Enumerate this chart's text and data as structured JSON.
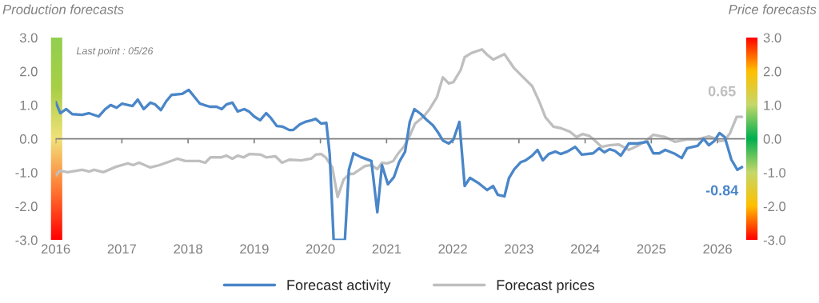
{
  "chart_data": {
    "type": "line",
    "ylabel": "Production forecasts",
    "y2label": "Price forecasts",
    "annotations": [
      "Last point : 05/26"
    ],
    "xlim": [
      2016,
      2026.42
    ],
    "xticks": [
      2016,
      2017,
      2018,
      2019,
      2020,
      2021,
      2022,
      2023,
      2024,
      2025,
      2026
    ],
    "ylim": [
      -3,
      3
    ],
    "yticks": [
      {
        "value": -3,
        "label": "-3.0"
      },
      {
        "value": -2,
        "label": "-2.0"
      },
      {
        "value": -1,
        "label": "-1.0"
      },
      {
        "value": 0,
        "label": "0.0"
      },
      {
        "value": 1,
        "label": "1.0"
      },
      {
        "value": 2,
        "label": "2.0"
      },
      {
        "value": 3,
        "label": "3.0"
      }
    ],
    "y2lim": [
      -3,
      3
    ],
    "y2ticks": [
      {
        "value": -3,
        "label": "-3.0"
      },
      {
        "value": -2,
        "label": "-2.0"
      },
      {
        "value": -1,
        "label": "-1.0"
      },
      {
        "value": 0,
        "label": "0.0"
      },
      {
        "value": 1,
        "label": "1.0"
      },
      {
        "value": 2,
        "label": "2.0"
      },
      {
        "value": 3,
        "label": "3.0"
      }
    ],
    "ref_lines": [
      {
        "axis": "y",
        "value": 0,
        "color": "#808080"
      }
    ],
    "grid": false,
    "legend": "bottom",
    "marker": "none",
    "line_style": "solid",
    "series": [
      {
        "name": "Forecast activity",
        "color": "#4a86c8",
        "axis": "y",
        "x": [
          2016.0,
          2016.07,
          2016.16,
          2016.25,
          2016.4,
          2016.5,
          2016.65,
          2016.75,
          2016.83,
          2016.92,
          2017.0,
          2017.16,
          2017.24,
          2017.33,
          2017.43,
          2017.5,
          2017.59,
          2017.67,
          2017.75,
          2017.91,
          2018.01,
          2018.08,
          2018.18,
          2018.33,
          2018.43,
          2018.51,
          2018.58,
          2018.67,
          2018.75,
          2018.85,
          2018.92,
          2019.0,
          2019.09,
          2019.18,
          2019.25,
          2019.34,
          2019.43,
          2019.53,
          2019.59,
          2019.69,
          2019.77,
          2019.87,
          2019.93,
          2020.01,
          2020.09,
          2020.14,
          2020.2,
          2020.37,
          2020.43,
          2020.5,
          2020.61,
          2020.77,
          2020.86,
          2020.93,
          2021.02,
          2021.11,
          2021.19,
          2021.28,
          2021.35,
          2021.42,
          2021.52,
          2021.6,
          2021.7,
          2021.77,
          2021.85,
          2021.94,
          2022.01,
          2022.1,
          2022.18,
          2022.26,
          2022.4,
          2022.52,
          2022.61,
          2022.68,
          2022.78,
          2022.85,
          2022.93,
          2023.03,
          2023.1,
          2023.2,
          2023.28,
          2023.36,
          2023.45,
          2023.55,
          2023.63,
          2023.73,
          2023.85,
          2023.95,
          2024.12,
          2024.21,
          2024.29,
          2024.37,
          2024.45,
          2024.54,
          2024.66,
          2024.79,
          2024.94,
          2025.03,
          2025.12,
          2025.21,
          2025.36,
          2025.46,
          2025.54,
          2025.7,
          2025.79,
          2025.87,
          2025.95,
          2026.03,
          2026.11,
          2026.21,
          2026.3,
          2026.37
        ],
        "values": [
          1.09,
          0.76,
          0.88,
          0.73,
          0.71,
          0.76,
          0.66,
          0.88,
          1.0,
          0.92,
          1.04,
          0.97,
          1.16,
          0.88,
          1.07,
          1.02,
          0.85,
          1.11,
          1.3,
          1.33,
          1.45,
          1.28,
          1.04,
          0.95,
          0.95,
          0.88,
          1.02,
          1.07,
          0.81,
          0.88,
          0.81,
          0.66,
          0.55,
          0.76,
          0.62,
          0.38,
          0.36,
          0.26,
          0.26,
          0.43,
          0.5,
          0.55,
          0.59,
          0.45,
          0.47,
          -0.45,
          -3.0,
          -3.0,
          -0.92,
          -0.43,
          -0.54,
          -0.66,
          -2.18,
          -0.78,
          -1.35,
          -1.14,
          -0.69,
          -0.38,
          0.5,
          0.88,
          0.73,
          0.57,
          0.4,
          0.21,
          -0.05,
          -0.14,
          -0.02,
          0.5,
          -1.4,
          -1.16,
          -1.33,
          -1.52,
          -1.4,
          -1.66,
          -1.71,
          -1.16,
          -0.9,
          -0.69,
          -0.64,
          -0.5,
          -0.33,
          -0.64,
          -0.45,
          -0.38,
          -0.45,
          -0.38,
          -0.24,
          -0.47,
          -0.43,
          -0.28,
          -0.4,
          -0.31,
          -0.36,
          -0.5,
          -0.14,
          -0.14,
          -0.09,
          -0.43,
          -0.43,
          -0.33,
          -0.45,
          -0.57,
          -0.28,
          -0.21,
          0.0,
          -0.19,
          -0.07,
          0.17,
          0.05,
          -0.62,
          -0.92,
          -0.84
        ],
        "value_labels": [
          null,
          null,
          null,
          null,
          null,
          null,
          null,
          null,
          null,
          null,
          null,
          null,
          null,
          null,
          null,
          null,
          null,
          null,
          null,
          null,
          null,
          null,
          null,
          null,
          null,
          null,
          null,
          null,
          null,
          null,
          null,
          null,
          null,
          null,
          null,
          null,
          null,
          null,
          null,
          null,
          null,
          null,
          null,
          null,
          null,
          null,
          null,
          null,
          null,
          null,
          null,
          null,
          null,
          null,
          null,
          null,
          null,
          null,
          null,
          null,
          null,
          null,
          null,
          null,
          null,
          null,
          null,
          null,
          null,
          null,
          null,
          null,
          null,
          null,
          null,
          null,
          null,
          null,
          null,
          null,
          null,
          null,
          null,
          null,
          null,
          null,
          null,
          null,
          null,
          null,
          null,
          null,
          null,
          null,
          null,
          null,
          null,
          null,
          null,
          null,
          null,
          null,
          null,
          null,
          null,
          null,
          null,
          null,
          null,
          null,
          null,
          "-0.84"
        ]
      },
      {
        "name": "Forecast prices",
        "color": "#bfbfbf",
        "axis": "y2",
        "x": [
          2016.0,
          2016.06,
          2016.18,
          2016.4,
          2016.51,
          2016.58,
          2016.72,
          2016.91,
          2017.09,
          2017.17,
          2017.26,
          2017.43,
          2017.57,
          2017.84,
          2017.96,
          2018.17,
          2018.26,
          2018.34,
          2018.5,
          2018.58,
          2018.67,
          2018.75,
          2018.84,
          2018.93,
          2019.1,
          2019.18,
          2019.32,
          2019.42,
          2019.53,
          2019.71,
          2019.86,
          2019.93,
          2020.01,
          2020.08,
          2020.18,
          2020.26,
          2020.35,
          2020.44,
          2020.5,
          2020.67,
          2020.77,
          2020.86,
          2020.93,
          2021.01,
          2021.1,
          2021.17,
          2021.27,
          2021.35,
          2021.43,
          2021.56,
          2021.65,
          2021.76,
          2021.85,
          2021.94,
          2022.01,
          2022.12,
          2022.18,
          2022.28,
          2022.44,
          2022.52,
          2022.61,
          2022.78,
          2022.92,
          2023.04,
          2023.2,
          2023.31,
          2023.4,
          2023.52,
          2023.64,
          2023.77,
          2023.87,
          2023.96,
          2024.06,
          2024.13,
          2024.25,
          2024.37,
          2024.51,
          2024.66,
          2024.79,
          2024.9,
          2025.03,
          2025.21,
          2025.36,
          2025.54,
          2025.7,
          2025.87,
          2025.95,
          2026.03,
          2026.11,
          2026.19,
          2026.29,
          2026.37
        ],
        "values": [
          -1.09,
          -0.95,
          -0.99,
          -0.92,
          -0.97,
          -0.92,
          -0.99,
          -0.83,
          -0.73,
          -0.78,
          -0.71,
          -0.85,
          -0.78,
          -0.59,
          -0.66,
          -0.66,
          -0.71,
          -0.55,
          -0.55,
          -0.5,
          -0.59,
          -0.5,
          -0.55,
          -0.45,
          -0.47,
          -0.55,
          -0.52,
          -0.71,
          -0.62,
          -0.64,
          -0.59,
          -0.47,
          -0.45,
          -0.55,
          -0.85,
          -1.73,
          -1.21,
          -1.04,
          -1.04,
          -0.81,
          -0.78,
          -0.9,
          -0.71,
          -0.73,
          -0.66,
          -0.45,
          -0.21,
          0.09,
          0.45,
          0.66,
          0.88,
          1.23,
          1.82,
          1.64,
          1.68,
          2.04,
          2.42,
          2.54,
          2.65,
          2.49,
          2.35,
          2.51,
          2.11,
          1.87,
          1.56,
          1.09,
          0.64,
          0.36,
          0.31,
          0.21,
          0.05,
          0.14,
          0.09,
          -0.02,
          -0.24,
          -0.19,
          -0.17,
          -0.33,
          -0.21,
          -0.09,
          0.12,
          0.05,
          -0.09,
          -0.02,
          -0.02,
          0.07,
          0.02,
          -0.07,
          -0.05,
          0.17,
          0.65,
          0.65
        ],
        "value_labels": [
          null,
          null,
          null,
          null,
          null,
          null,
          null,
          null,
          null,
          null,
          null,
          null,
          null,
          null,
          null,
          null,
          null,
          null,
          null,
          null,
          null,
          null,
          null,
          null,
          null,
          null,
          null,
          null,
          null,
          null,
          null,
          null,
          null,
          null,
          null,
          null,
          null,
          null,
          null,
          null,
          null,
          null,
          null,
          null,
          null,
          null,
          null,
          null,
          null,
          null,
          null,
          null,
          null,
          null,
          null,
          null,
          null,
          null,
          null,
          null,
          null,
          null,
          null,
          null,
          null,
          null,
          null,
          null,
          null,
          null,
          null,
          null,
          null,
          null,
          null,
          null,
          null,
          null,
          null,
          null,
          null,
          null,
          null,
          null,
          null,
          null,
          null,
          null,
          null,
          null,
          null,
          "0.65"
        ]
      }
    ]
  }
}
